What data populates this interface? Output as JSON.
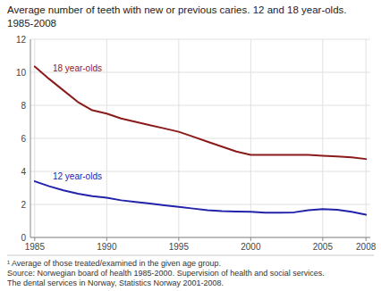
{
  "chart_data": {
    "type": "line",
    "title": "Average number of teeth with new or previous caries. 12 and 18 year-olds. 1985-2008",
    "annotations": [
      "¹ Average of those treated/examined in the given age group.",
      "Source: Norwegian board of health 1985-2000. Supervision of health and social services.",
      "The dental services in Norway, Statistics Norway 2001-2008."
    ],
    "x": [
      1985,
      1986,
      1987,
      1988,
      1989,
      1990,
      1991,
      1992,
      1993,
      1994,
      1995,
      1996,
      1997,
      1998,
      1999,
      2000,
      2001,
      2002,
      2003,
      2004,
      2005,
      2006,
      2007,
      2008
    ],
    "series": [
      {
        "name": "18 year-olds",
        "color": "#8B1A1A",
        "values": [
          10.35,
          9.6,
          8.9,
          8.2,
          7.7,
          7.5,
          7.2,
          7.0,
          6.8,
          6.6,
          6.4,
          6.1,
          5.8,
          5.5,
          5.2,
          5.0,
          5.0,
          5.0,
          5.0,
          5.0,
          4.95,
          4.9,
          4.85,
          4.75
        ]
      },
      {
        "name": "12 year-olds",
        "color": "#2222AA",
        "values": [
          3.4,
          3.1,
          2.85,
          2.65,
          2.5,
          2.4,
          2.25,
          2.15,
          2.05,
          1.95,
          1.85,
          1.75,
          1.65,
          1.6,
          1.57,
          1.55,
          1.5,
          1.5,
          1.52,
          1.65,
          1.72,
          1.68,
          1.55,
          1.38
        ]
      }
    ],
    "xlim": [
      1984.7,
      2008.3
    ],
    "xticks": [
      1985,
      1990,
      1995,
      2000,
      2005,
      2008
    ],
    "ylim": [
      0,
      12
    ],
    "yticks": [
      0,
      2,
      4,
      6,
      8,
      10,
      12
    ],
    "grid": true
  }
}
